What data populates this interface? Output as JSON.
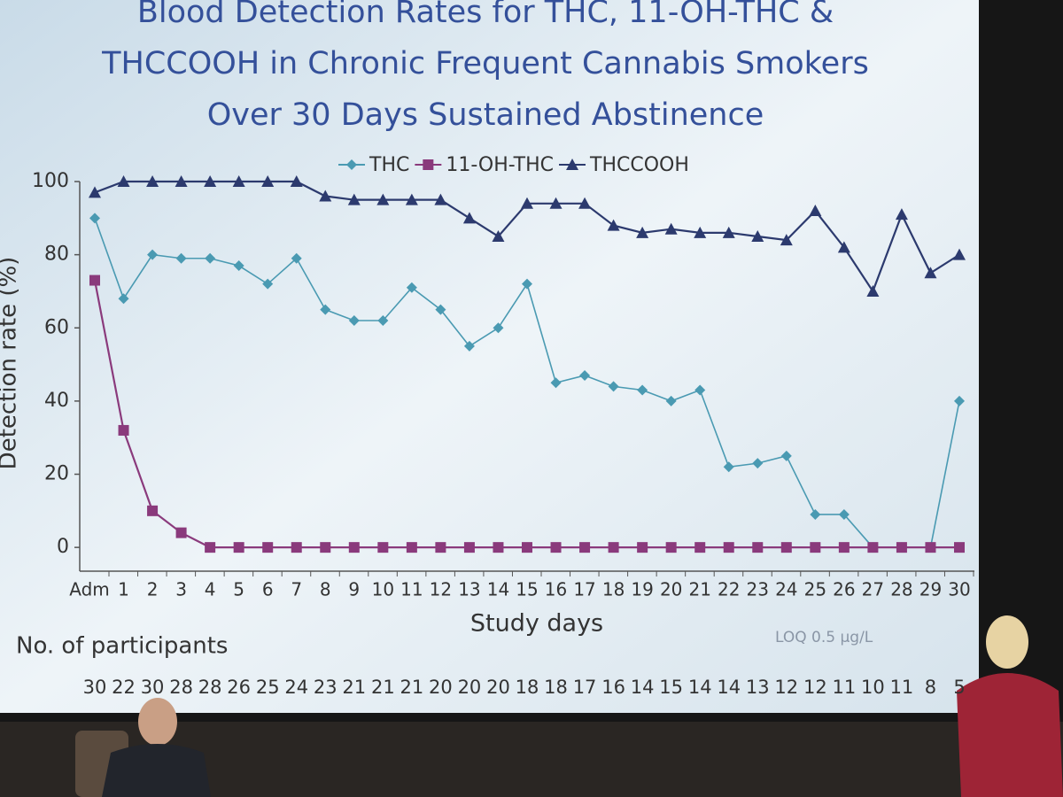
{
  "chart_data": {
    "type": "line",
    "title": [
      "Blood Detection Rates for THC, 11-OH-THC &",
      "THCCOOH in Chronic Frequent Cannabis Smokers",
      "Over 30 Days Sustained Abstinence"
    ],
    "x_label": "Study days",
    "y_label": "Detection rate (%)",
    "annotation": "LOQ 0.5 µg/L",
    "categories": [
      "Adm",
      "1",
      "2",
      "3",
      "4",
      "5",
      "6",
      "7",
      "8",
      "9",
      "10",
      "11",
      "12",
      "13",
      "14",
      "15",
      "16",
      "17",
      "18",
      "19",
      "20",
      "21",
      "22",
      "23",
      "24",
      "25",
      "26",
      "27",
      "28",
      "29",
      "30"
    ],
    "series": [
      {
        "name": "THC",
        "color": "#4a9ab2",
        "marker": "diamond",
        "values": [
          90,
          68,
          80,
          79,
          79,
          77,
          72,
          79,
          65,
          62,
          62,
          71,
          65,
          55,
          60,
          72,
          45,
          47,
          44,
          43,
          40,
          43,
          22,
          23,
          25,
          9,
          9,
          0,
          0,
          0,
          40
        ]
      },
      {
        "name": "11-OH-THC",
        "color": "#8a3a7c",
        "marker": "square",
        "values": [
          73,
          32,
          10,
          4,
          0,
          0,
          0,
          0,
          0,
          0,
          0,
          0,
          0,
          0,
          0,
          0,
          0,
          0,
          0,
          0,
          0,
          0,
          0,
          0,
          0,
          0,
          0,
          0,
          0,
          0,
          0
        ]
      },
      {
        "name": "THCCOOH",
        "color": "#2c3a6e",
        "marker": "triangle",
        "values": [
          97,
          100,
          100,
          100,
          100,
          100,
          100,
          100,
          96,
          95,
          95,
          95,
          95,
          90,
          85,
          94,
          94,
          94,
          88,
          86,
          87,
          86,
          86,
          85,
          84,
          92,
          82,
          70,
          91,
          75,
          80
        ]
      }
    ],
    "ylim": [
      -6.5,
      100
    ],
    "yticks": [
      0,
      20,
      40,
      60,
      80,
      100
    ],
    "legend": "top",
    "participants_label": "No. of participants",
    "participants": [
      30,
      22,
      30,
      28,
      28,
      26,
      25,
      24,
      23,
      21,
      21,
      21,
      20,
      20,
      20,
      18,
      18,
      17,
      16,
      14,
      15,
      14,
      14,
      13,
      12,
      12,
      11,
      10,
      11,
      8,
      5
    ]
  }
}
